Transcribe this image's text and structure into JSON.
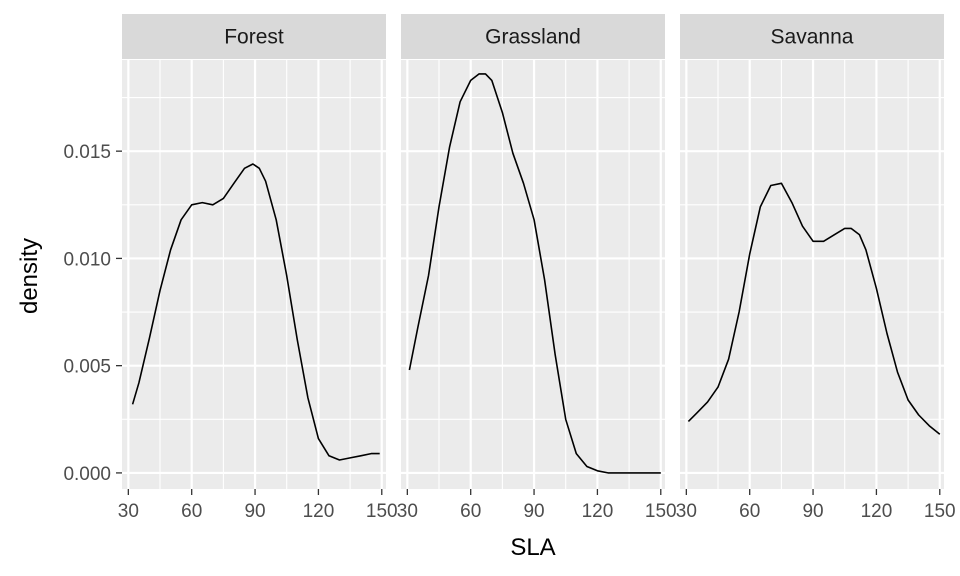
{
  "chart_data": {
    "type": "line",
    "xlabel": "SLA",
    "ylabel": "density",
    "xlim": [
      27,
      152
    ],
    "ylim": [
      -0.00075,
      0.01925
    ],
    "x_ticks": [
      30,
      60,
      90,
      120,
      150
    ],
    "x_tick_labels": [
      "30",
      "60",
      "90",
      "120",
      "150"
    ],
    "y_ticks": [
      0,
      0.005,
      0.01,
      0.015
    ],
    "y_tick_labels": [
      "0.000",
      "0.005",
      "0.010",
      "0.015"
    ],
    "grid": true,
    "legend": "none",
    "colors": {
      "panel_background": "#ebebeb",
      "strip_background": "#d9d9d9",
      "grid": "#ffffff",
      "line": "#000000",
      "tick_label": "#4d4d4d"
    },
    "panels": [
      {
        "name": "Forest",
        "x": [
          32,
          35,
          40,
          45,
          50,
          55,
          60,
          65,
          70,
          75,
          80,
          85,
          89,
          92,
          95,
          100,
          105,
          110,
          115,
          120,
          125,
          130,
          135,
          140,
          145,
          149
        ],
        "y": [
          0.0032,
          0.0042,
          0.0063,
          0.0085,
          0.0104,
          0.0118,
          0.0125,
          0.0126,
          0.0125,
          0.0128,
          0.0135,
          0.0142,
          0.0144,
          0.0142,
          0.0136,
          0.0118,
          0.0092,
          0.0062,
          0.0035,
          0.0016,
          0.0008,
          0.0006,
          0.0007,
          0.0008,
          0.0009,
          0.0009
        ]
      },
      {
        "name": "Grassland",
        "x": [
          31,
          35,
          40,
          45,
          50,
          55,
          60,
          64,
          67,
          70,
          75,
          80,
          85,
          90,
          95,
          100,
          105,
          110,
          115,
          120,
          125,
          130,
          140,
          150
        ],
        "y": [
          0.0048,
          0.0068,
          0.0092,
          0.0124,
          0.0152,
          0.0173,
          0.0183,
          0.0186,
          0.0186,
          0.0183,
          0.0168,
          0.0149,
          0.0135,
          0.0118,
          0.009,
          0.0055,
          0.0025,
          0.0009,
          0.0003,
          0.0001,
          0.0,
          0.0,
          0.0,
          0.0
        ]
      },
      {
        "name": "Savanna",
        "x": [
          31,
          35,
          40,
          45,
          50,
          55,
          60,
          65,
          70,
          75,
          80,
          85,
          90,
          95,
          100,
          105,
          108,
          112,
          115,
          120,
          125,
          130,
          135,
          140,
          145,
          150
        ],
        "y": [
          0.0024,
          0.0028,
          0.0033,
          0.004,
          0.0053,
          0.0075,
          0.0102,
          0.0124,
          0.0134,
          0.0135,
          0.0126,
          0.0115,
          0.0108,
          0.0108,
          0.0111,
          0.0114,
          0.0114,
          0.0111,
          0.0104,
          0.0086,
          0.0065,
          0.0047,
          0.0034,
          0.0027,
          0.0022,
          0.0018
        ]
      }
    ]
  }
}
